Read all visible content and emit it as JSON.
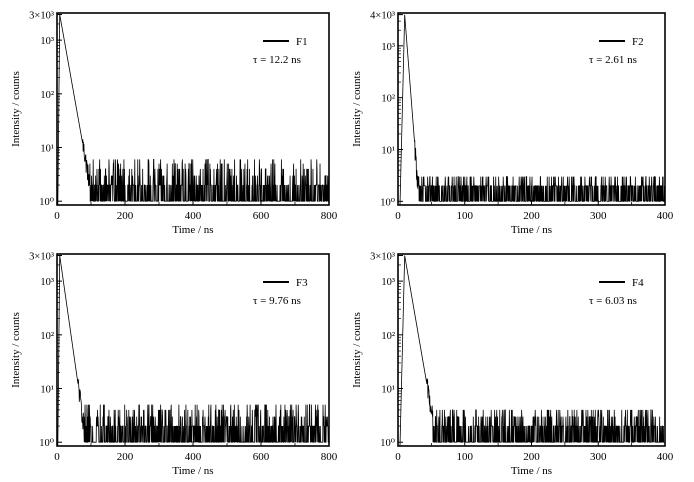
{
  "figure": {
    "background": "#ffffff",
    "line_color": "#000000"
  },
  "chart_data": [
    {
      "type": "line",
      "panel": "F1",
      "xlabel": "Time / ns",
      "ylabel": "Intensity / counts",
      "xlim": [
        0,
        800
      ],
      "ylim": [
        0.85,
        3200
      ],
      "yscale": "log",
      "xticks": [
        0,
        200,
        400,
        600,
        800
      ],
      "xtick_labels": [
        "0",
        "200",
        "400",
        "600",
        "800"
      ],
      "yticks": [
        1,
        10,
        100,
        1000,
        3000
      ],
      "ytick_labels": [
        "10⁰",
        "10¹",
        "10²",
        "10³",
        "3×10³"
      ],
      "legend": {
        "name": "F1",
        "tau": "τ = 12.2 ns",
        "position": "top-right"
      },
      "series": [
        {
          "name": "F1",
          "peak_x": 8,
          "peak_y": 3000,
          "tau_ns": 12.2,
          "noise_floor_start_x": 95,
          "noise_range": [
            1,
            6
          ],
          "x_end": 800
        }
      ]
    },
    {
      "type": "line",
      "panel": "F2",
      "xlabel": "Time / ns",
      "ylabel": "Intensity / counts",
      "xlim": [
        0,
        400
      ],
      "ylim": [
        0.85,
        4300
      ],
      "yscale": "log",
      "xticks": [
        0,
        100,
        200,
        300,
        400
      ],
      "xtick_labels": [
        "0",
        "100",
        "200",
        "300",
        "400"
      ],
      "yticks": [
        1,
        10,
        100,
        1000,
        4000
      ],
      "ytick_labels": [
        "10⁰",
        "10¹",
        "10²",
        "10³",
        "4×10³"
      ],
      "legend": {
        "name": "F2",
        "tau": "τ = 2.61 ns",
        "position": "top-right"
      },
      "series": [
        {
          "name": "F2",
          "peak_x": 10,
          "peak_y": 4000,
          "tau_ns": 2.61,
          "noise_floor_start_x": 30,
          "noise_range": [
            1,
            3
          ],
          "x_end": 400
        }
      ]
    },
    {
      "type": "line",
      "panel": "F3",
      "xlabel": "Time / ns",
      "ylabel": "Intensity / counts",
      "xlim": [
        0,
        800
      ],
      "ylim": [
        0.85,
        3200
      ],
      "yscale": "log",
      "xticks": [
        0,
        200,
        400,
        600,
        800
      ],
      "xtick_labels": [
        "0",
        "200",
        "400",
        "600",
        "800"
      ],
      "yticks": [
        1,
        10,
        100,
        1000,
        3000
      ],
      "ytick_labels": [
        "10⁰",
        "10¹",
        "10²",
        "10³",
        "3×10³"
      ],
      "legend": {
        "name": "F3",
        "tau": "τ = 9.76 ns",
        "position": "top-right"
      },
      "series": [
        {
          "name": "F3",
          "peak_x": 8,
          "peak_y": 3000,
          "tau_ns": 9.76,
          "noise_floor_start_x": 80,
          "noise_range": [
            1,
            5
          ],
          "x_end": 800
        }
      ]
    },
    {
      "type": "line",
      "panel": "F4",
      "xlabel": "Time / ns",
      "ylabel": "Intensity / counts",
      "xlim": [
        0,
        400
      ],
      "ylim": [
        0.85,
        3200
      ],
      "yscale": "log",
      "xticks": [
        0,
        100,
        200,
        300,
        400
      ],
      "xtick_labels": [
        "0",
        "100",
        "200",
        "300",
        "400"
      ],
      "yticks": [
        1,
        10,
        100,
        1000,
        3000
      ],
      "ytick_labels": [
        "10⁰",
        "10¹",
        "10²",
        "10³",
        "3×10³"
      ],
      "legend": {
        "name": "F4",
        "tau": "τ = 6.03 ns",
        "position": "top-right"
      },
      "series": [
        {
          "name": "F4",
          "peak_x": 10,
          "peak_y": 3000,
          "tau_ns": 6.03,
          "noise_floor_start_x": 52,
          "noise_range": [
            1,
            4
          ],
          "x_end": 400
        }
      ]
    }
  ]
}
